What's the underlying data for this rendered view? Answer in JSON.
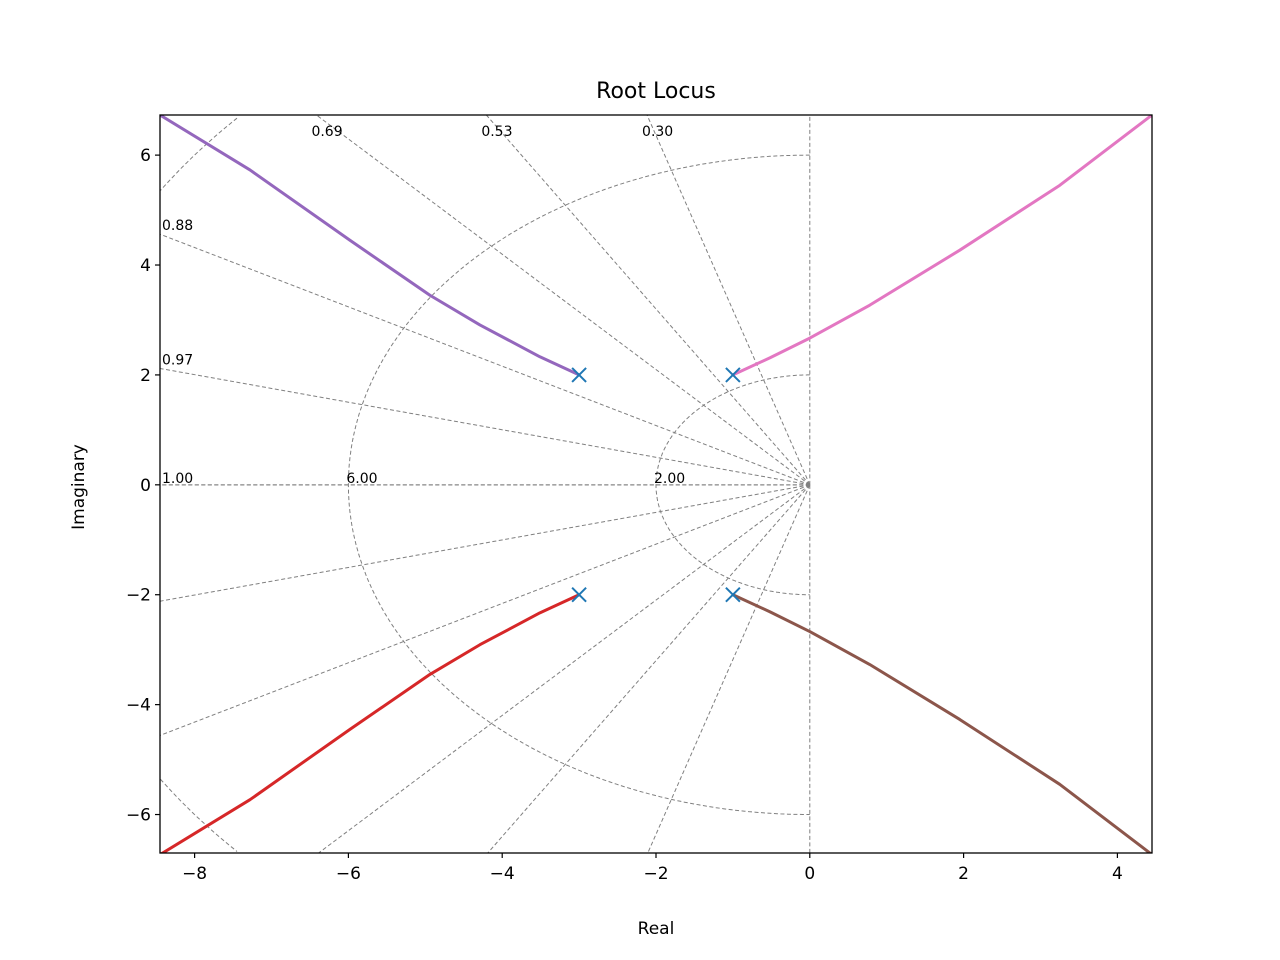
{
  "chart_data": {
    "type": "line",
    "title": "Root Locus",
    "xlabel": "Real",
    "ylabel": "Imaginary",
    "xlim": [
      -8.45,
      4.45
    ],
    "ylim": [
      -6.7,
      6.73
    ],
    "xticks": [
      -8,
      -6,
      -4,
      -2,
      0,
      2,
      4
    ],
    "xtick_labels": [
      "−8",
      "−6",
      "−4",
      "−2",
      "0",
      "2",
      "4"
    ],
    "yticks": [
      -6,
      -4,
      -2,
      0,
      2,
      4,
      6
    ],
    "ytick_labels": [
      "−6",
      "−4",
      "−2",
      "0",
      "2",
      "4",
      "6"
    ],
    "grid": {
      "damping_lines": [
        0,
        0.3,
        0.53,
        0.69,
        0.88,
        0.97,
        1.0
      ],
      "damping_labels": [
        "0.30",
        "0.53",
        "0.69",
        "0.88",
        "0.97",
        "1.00"
      ],
      "natural_frequency_circles": [
        2,
        6,
        10
      ],
      "natural_frequency_labels": [
        "2.00",
        "6.00"
      ],
      "color": "#808080",
      "style": "dashed"
    },
    "poles": {
      "marker": "x",
      "color": "#1f77b4",
      "points": [
        [
          -3,
          2
        ],
        [
          -3,
          -2
        ],
        [
          -1,
          2
        ],
        [
          -1,
          -2
        ]
      ]
    },
    "series": [
      {
        "color": "#9467bd",
        "points": [
          [
            -3,
            2
          ],
          [
            -3.51,
            2.33
          ],
          [
            -4.29,
            2.91
          ],
          [
            -4.94,
            3.45
          ],
          [
            -5.98,
            4.45
          ],
          [
            -7.28,
            5.73
          ],
          [
            -8.45,
            6.73
          ]
        ]
      },
      {
        "color": "#d62728",
        "points": [
          [
            -3,
            -2
          ],
          [
            -3.51,
            -2.33
          ],
          [
            -4.29,
            -2.91
          ],
          [
            -4.94,
            -3.45
          ],
          [
            -5.98,
            -4.45
          ],
          [
            -7.28,
            -5.73
          ],
          [
            -8.45,
            -6.73
          ]
        ]
      },
      {
        "color": "#e377c2",
        "points": [
          [
            -1,
            2
          ],
          [
            -0.52,
            2.31
          ],
          [
            0,
            2.67
          ],
          [
            0.78,
            3.27
          ],
          [
            1.95,
            4.27
          ],
          [
            3.25,
            5.45
          ],
          [
            4.45,
            6.73
          ]
        ]
      },
      {
        "color": "#8c564b",
        "points": [
          [
            -1,
            -2
          ],
          [
            -0.52,
            -2.31
          ],
          [
            0,
            -2.67
          ],
          [
            0.78,
            -3.27
          ],
          [
            1.95,
            -4.27
          ],
          [
            3.25,
            -5.45
          ],
          [
            4.45,
            -6.73
          ]
        ]
      }
    ]
  }
}
